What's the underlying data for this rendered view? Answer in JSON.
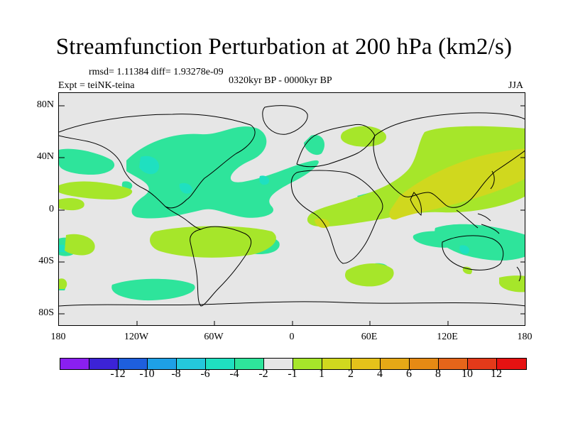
{
  "title": "Streamfunction Perturbation at 200 hPa (km2/s)",
  "stats": "rmsd= 1.11384  diff= 1.93278e-09",
  "experiment": "Expt = teiNK-teina",
  "period": "0320kyr BP - 0000kyr BP",
  "season": "JJA",
  "lat_labels": [
    "80N",
    "40N",
    "0",
    "40S",
    "80S"
  ],
  "lon_labels": [
    "180",
    "120W",
    "60W",
    "0",
    "60E",
    "120E",
    "180"
  ],
  "colorbar": {
    "colors": [
      "#8a1ff0",
      "#3c23d6",
      "#1e5fdd",
      "#1ea0e6",
      "#24c8dc",
      "#1fe0c0",
      "#2ee49b",
      "#e6e6e6",
      "#a6e62a",
      "#d0d81e",
      "#e5c21a",
      "#e6a816",
      "#e68a14",
      "#e5651a",
      "#e33a1a",
      "#e61212"
    ],
    "labels": [
      "-12",
      "-10",
      "-8",
      "-6",
      "-4",
      "-2",
      "-1",
      "1",
      "2",
      "4",
      "6",
      "8",
      "10",
      "12"
    ]
  }
}
